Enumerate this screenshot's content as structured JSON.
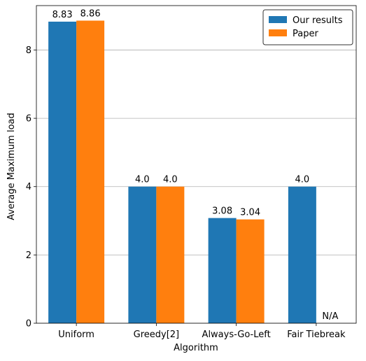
{
  "chart_data": {
    "type": "bar",
    "xlabel": "Algorithm",
    "ylabel": "Average Maximum load",
    "categories": [
      "Uniform",
      "Greedy[2]",
      "Always-Go-Left",
      "Fair Tiebreak"
    ],
    "series": [
      {
        "name": "Our results",
        "values": [
          8.83,
          4.0,
          3.08,
          4.0
        ],
        "labels": [
          "8.83",
          "4.0",
          "3.08",
          "4.0"
        ],
        "color": "#1f77b4"
      },
      {
        "name": "Paper",
        "values": [
          8.86,
          4.0,
          3.04,
          null
        ],
        "labels": [
          "8.86",
          "4.0",
          "3.04",
          "N/A"
        ],
        "color": "#ff7f0e"
      }
    ],
    "ylim": [
      0,
      9.3
    ],
    "yticks": [
      0,
      2,
      4,
      6,
      8
    ],
    "grid": "y",
    "legend_position": "top-right"
  }
}
